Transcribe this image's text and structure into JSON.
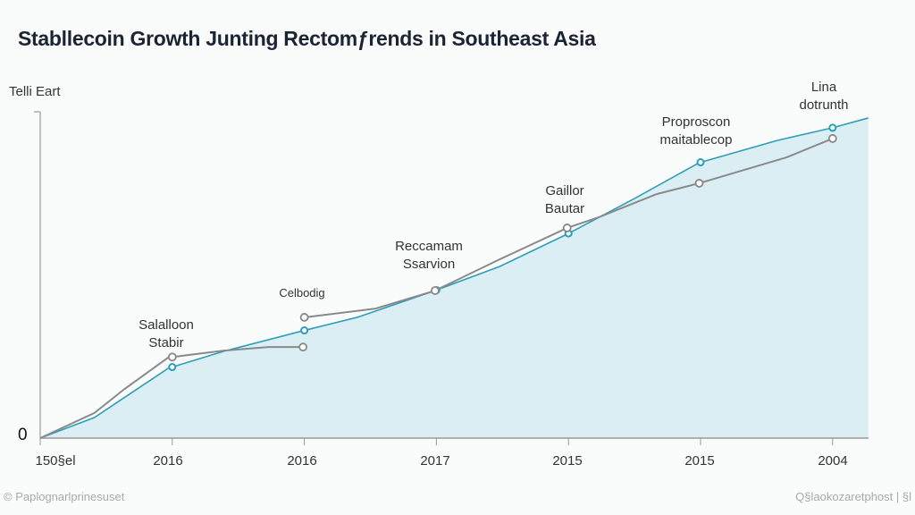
{
  "chart_data": {
    "type": "area",
    "title": "Stabllecoin Growth Junting Rectomƒrends in Southeast Asia",
    "ylabel": "Telli Eart",
    "xlabel": "",
    "y_zero_label": "0",
    "tick_labels": [
      "150§el",
      "2016",
      "2016",
      "2017",
      "2015",
      "2015",
      "2004"
    ],
    "ylim": [
      0,
      100
    ],
    "xlim": [
      0,
      6.27
    ],
    "grid": false,
    "series": [
      {
        "name": "blue",
        "color": "#2a9fb8",
        "fill": "#daeef3",
        "x": [
          0,
          0.41,
          0.97,
          1.39,
          1.99,
          2.4,
          2.99,
          3.48,
          3.99,
          4.5,
          4.99,
          5.58,
          6.0,
          6.27
        ],
        "y": [
          0,
          6.3,
          21.4,
          26.6,
          32.9,
          37.0,
          45.2,
          52.6,
          62.5,
          73.4,
          84.4,
          91.2,
          95.1,
          98.1
        ],
        "markers": [
          1.0,
          2.0,
          3.0,
          4.0,
          5.0,
          6.0
        ]
      },
      {
        "name": "gray-1",
        "color": "#8a8a8a",
        "x": [
          0,
          0.41,
          0.64,
          0.97,
          1.39,
          1.73,
          1.99
        ],
        "y": [
          0,
          7.7,
          15.1,
          24.7,
          26.8,
          27.9,
          27.9
        ]
      },
      {
        "name": "gray-2",
        "color": "#8a8a8a",
        "x": [
          2.0,
          2.54,
          2.99,
          3.48,
          3.99,
          4.23,
          4.67,
          4.99,
          5.65,
          6.0
        ],
        "y": [
          37.0,
          39.7,
          45.2,
          54.8,
          64.4,
          67.7,
          74.8,
          78.1,
          86.0,
          91.8
        ]
      }
    ],
    "annotations": [
      {
        "text": [
          "Salalloon",
          "Stabir"
        ]
      },
      {
        "text": [
          "Celbodig"
        ]
      },
      {
        "text": [
          "Reccamam",
          "Ssarvion"
        ]
      },
      {
        "text": [
          "Gaillor",
          "Bautar"
        ]
      },
      {
        "text": [
          "Proproscon",
          "maitablecop"
        ]
      },
      {
        "text": [
          "Lina",
          "dotrunth"
        ]
      }
    ]
  },
  "footer": {
    "left": "© Paplognarlprinesuset",
    "right": "Q§laokozaretphost | §l"
  }
}
